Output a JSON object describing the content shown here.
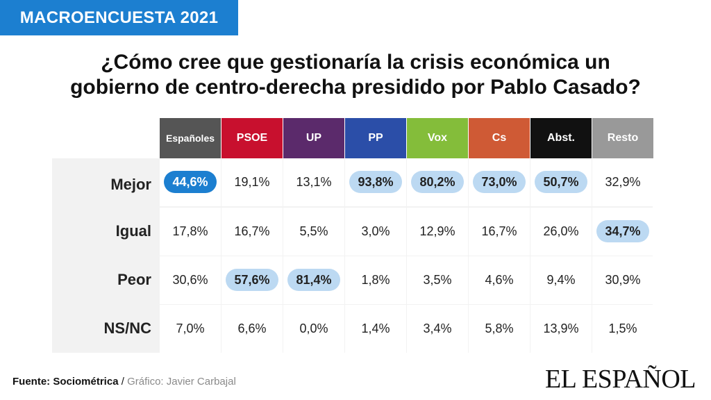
{
  "badge": "MACROENCUESTA 2021",
  "title_line1": "¿Cómo cree que gestionaría la crisis económica un",
  "title_line2": "gobierno de centro-derecha presidido por Pablo Casado?",
  "source_label": "Fuente: Sociométrica",
  "source_sep": " / ",
  "credit": "Gráfico: Javier Carbajal",
  "logo": "EL ESPAÑOL",
  "colors": {
    "Españoles": "#555555",
    "PSOE": "#c8102e",
    "UP": "#5b2a6b",
    "PP": "#2b4ea8",
    "Vox": "#84bd3a",
    "Cs": "#cf5a35",
    "Abst.": "#111111",
    "Resto": "#999999",
    "highlight": "#bcd9f2",
    "highlight_strong": "#1c7fd0"
  },
  "chart_data": {
    "type": "table",
    "columns": [
      "Españoles",
      "PSOE",
      "UP",
      "PP",
      "Vox",
      "Cs",
      "Abst.",
      "Resto"
    ],
    "rows": [
      "Mejor",
      "Igual",
      "Peor",
      "NS/NC"
    ],
    "values": [
      [
        "44,6%",
        "19,1%",
        "13,1%",
        "93,8%",
        "80,2%",
        "73,0%",
        "50,7%",
        "32,9%"
      ],
      [
        "17,8%",
        "16,7%",
        "5,5%",
        "3,0%",
        "12,9%",
        "16,7%",
        "26,0%",
        "34,7%"
      ],
      [
        "30,6%",
        "57,6%",
        "81,4%",
        "1,8%",
        "3,5%",
        "4,6%",
        "9,4%",
        "30,9%"
      ],
      [
        "7,0%",
        "6,6%",
        "0,0%",
        "1,4%",
        "3,4%",
        "5,8%",
        "13,9%",
        "1,5%"
      ]
    ],
    "highlighted": [
      [
        true,
        false,
        false,
        true,
        true,
        true,
        true,
        false
      ],
      [
        false,
        false,
        false,
        false,
        false,
        false,
        false,
        true
      ],
      [
        false,
        true,
        true,
        false,
        false,
        false,
        false,
        false
      ],
      [
        false,
        false,
        false,
        false,
        false,
        false,
        false,
        false
      ]
    ],
    "strong_highlight": [
      0,
      0
    ]
  }
}
